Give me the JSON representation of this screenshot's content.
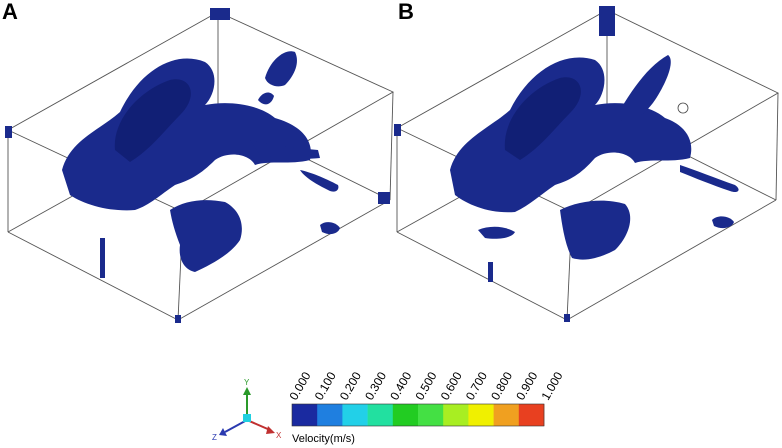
{
  "panels": [
    {
      "label": "A"
    },
    {
      "label": "B"
    }
  ],
  "legend": {
    "title": "Velocity(m/s)",
    "ticks": [
      "0.000",
      "0.100",
      "0.200",
      "0.300",
      "0.400",
      "0.500",
      "0.600",
      "0.700",
      "0.800",
      "0.900",
      "1.000"
    ],
    "colors": [
      "#1a2aa0",
      "#1f7fe0",
      "#22d0e8",
      "#22e0a0",
      "#22cc22",
      "#44e044",
      "#a8ee22",
      "#f0f000",
      "#f0a020",
      "#e84020"
    ]
  },
  "triad": {
    "y": "Y",
    "z": "Z",
    "x": "X"
  }
}
